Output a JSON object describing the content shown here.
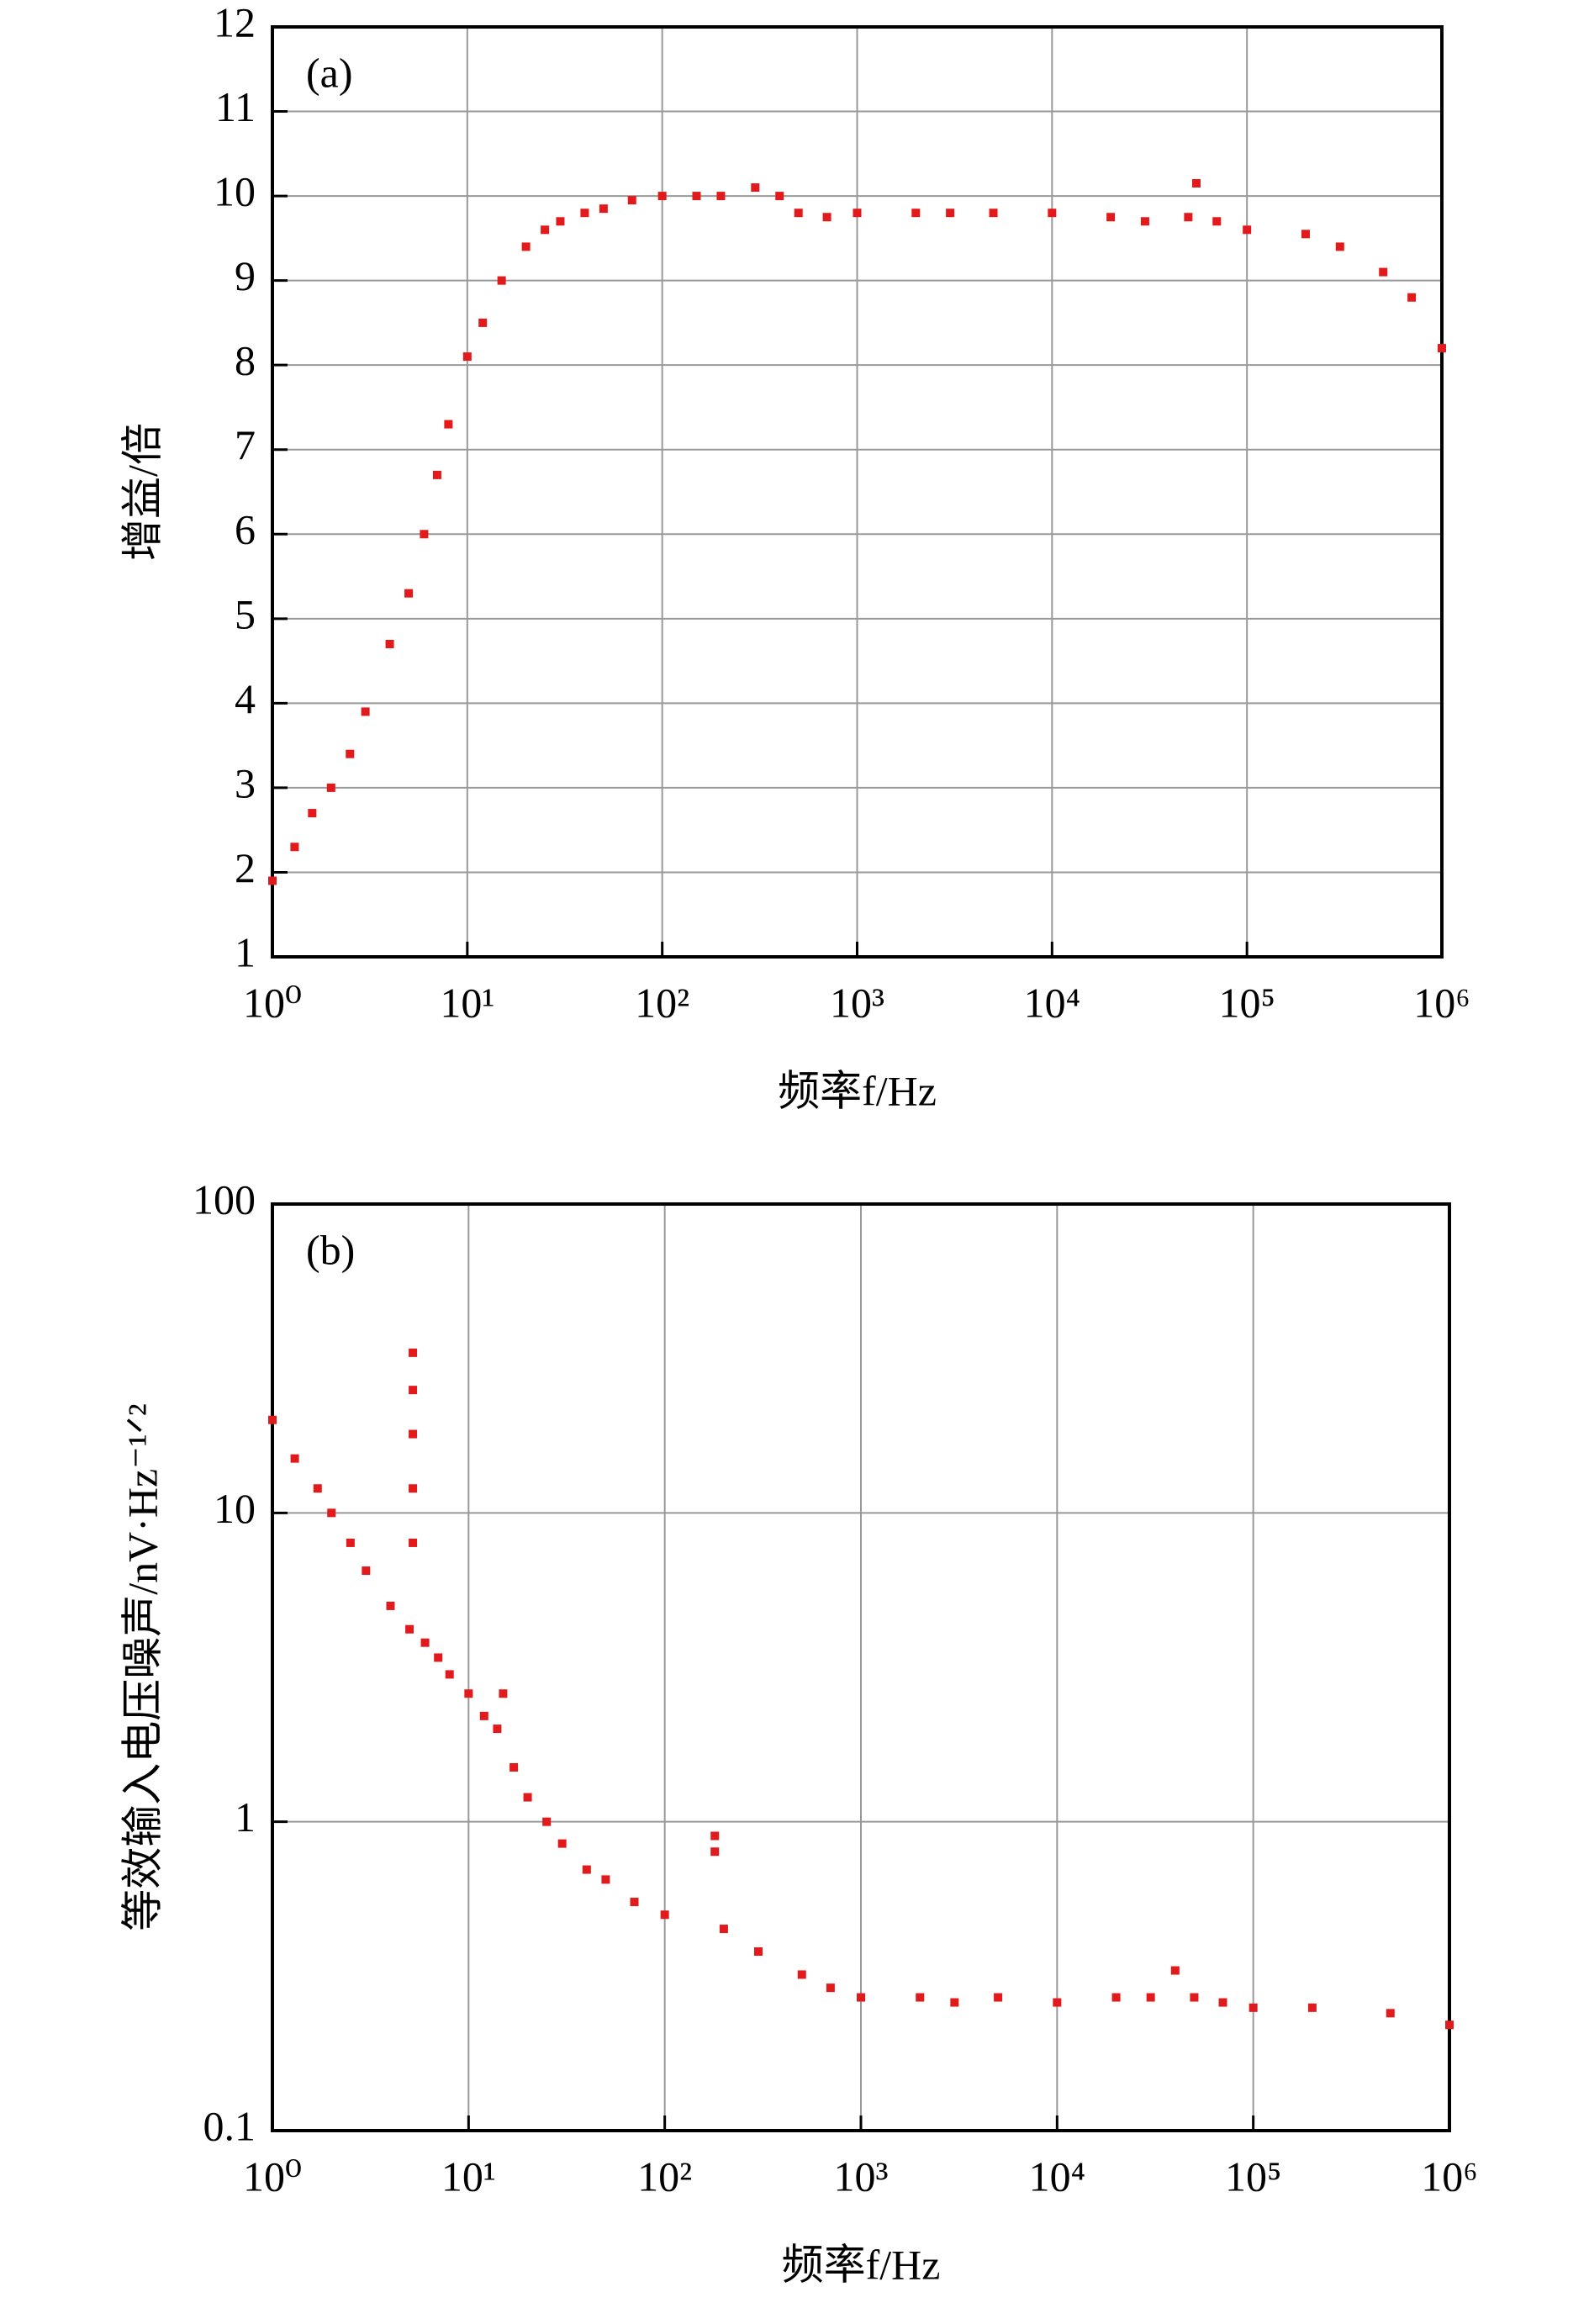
{
  "chart_data": [
    {
      "type": "scatter",
      "annotation": "(a)",
      "xlabel": "频率f/Hz",
      "ylabel": "增益/倍",
      "xscale": "log",
      "yscale": "linear",
      "grid": true,
      "color": "#e31a1c",
      "xlim": [
        1,
        1000000
      ],
      "ylim": [
        1,
        12
      ],
      "xticks": [
        {
          "value": 1,
          "label": "10⁰"
        },
        {
          "value": 10,
          "label": "10¹"
        },
        {
          "value": 100,
          "label": "10²"
        },
        {
          "value": 1000,
          "label": "10³"
        },
        {
          "value": 10000,
          "label": "10⁴"
        },
        {
          "value": 100000,
          "label": "10⁵"
        },
        {
          "value": 1000000,
          "label": "10⁶"
        }
      ],
      "yticks": [
        1,
        2,
        3,
        4,
        5,
        6,
        7,
        8,
        9,
        10,
        11,
        12
      ],
      "x": [
        1,
        1.3,
        1.6,
        2,
        2.5,
        3,
        4,
        5,
        6,
        7,
        8,
        10,
        12,
        15,
        20,
        25,
        30,
        40,
        50,
        70,
        100,
        150,
        200,
        300,
        400,
        500,
        700,
        1000,
        2000,
        3000,
        5000,
        10000,
        20000,
        30000,
        50000,
        55000,
        70000,
        100000,
        200000,
        300000,
        500000,
        700000,
        1000000
      ],
      "values": [
        1.9,
        2.3,
        2.7,
        3.0,
        3.4,
        3.9,
        4.7,
        5.3,
        6.0,
        6.7,
        7.3,
        8.1,
        8.5,
        9.0,
        9.4,
        9.6,
        9.7,
        9.8,
        9.85,
        9.95,
        10.0,
        10.0,
        10.0,
        10.1,
        10.0,
        9.8,
        9.75,
        9.8,
        9.8,
        9.8,
        9.8,
        9.8,
        9.75,
        9.7,
        9.75,
        10.15,
        9.7,
        9.6,
        9.55,
        9.4,
        9.1,
        8.8,
        8.2
      ]
    },
    {
      "type": "scatter",
      "annotation": "(b)",
      "xlabel": "频率f/Hz",
      "ylabel": "等效输入电压噪声/nV·Hz⁻¹ᐟ²",
      "xscale": "log",
      "yscale": "log",
      "grid": true,
      "color": "#e31a1c",
      "xlim": [
        1,
        1000000
      ],
      "ylim": [
        0.1,
        100
      ],
      "xticks": [
        {
          "value": 1,
          "label": "10⁰"
        },
        {
          "value": 10,
          "label": "10¹"
        },
        {
          "value": 100,
          "label": "10²"
        },
        {
          "value": 1000,
          "label": "10³"
        },
        {
          "value": 10000,
          "label": "10⁴"
        },
        {
          "value": 100000,
          "label": "10⁵"
        },
        {
          "value": 1000000,
          "label": "10⁶"
        }
      ],
      "yticks": [
        0.1,
        1,
        10,
        100
      ],
      "x": [
        1,
        1.3,
        1.7,
        2,
        2.5,
        3,
        4,
        5,
        5.2,
        5.2,
        5.2,
        5.2,
        5.2,
        6,
        7,
        8,
        10,
        12,
        14,
        15,
        17,
        20,
        25,
        30,
        40,
        50,
        70,
        100,
        180,
        180,
        200,
        300,
        500,
        700,
        1000,
        2000,
        3000,
        5000,
        10000,
        20000,
        30000,
        40000,
        50000,
        70000,
        100000,
        200000,
        500000,
        1000000
      ],
      "values": [
        20,
        15,
        12,
        10,
        8,
        6.5,
        5,
        4.2,
        33,
        25,
        18,
        12,
        8,
        3.8,
        3.4,
        3,
        2.6,
        2.2,
        2.0,
        2.6,
        1.5,
        1.2,
        1.0,
        0.85,
        0.7,
        0.65,
        0.55,
        0.5,
        0.9,
        0.8,
        0.45,
        0.38,
        0.32,
        0.29,
        0.27,
        0.27,
        0.26,
        0.27,
        0.26,
        0.27,
        0.27,
        0.33,
        0.27,
        0.26,
        0.25,
        0.25,
        0.24,
        0.22
      ]
    }
  ]
}
